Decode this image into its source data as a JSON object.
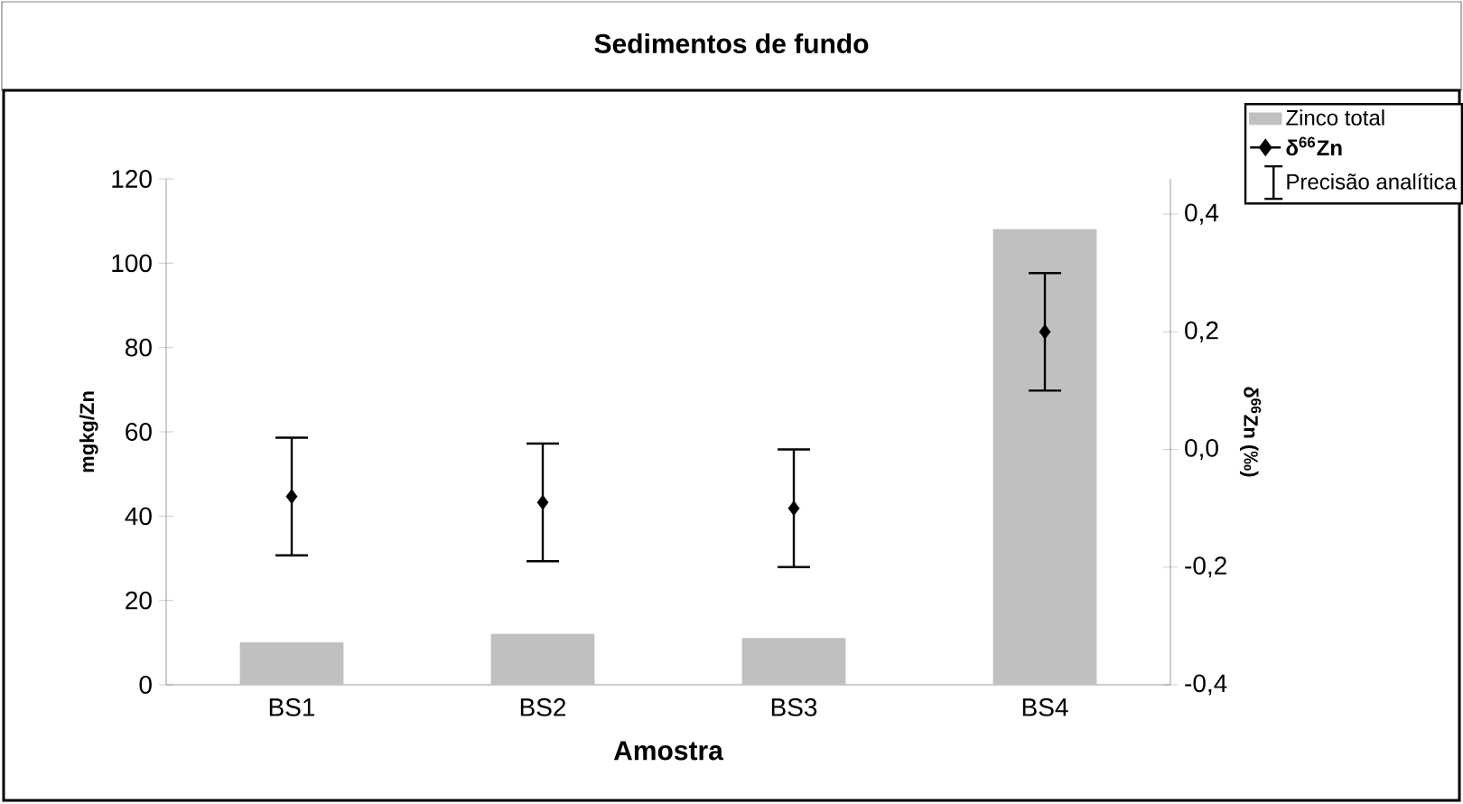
{
  "chart_data": {
    "type": "bar",
    "title": "Sedimentos de fundo",
    "xlabel": "Amostra",
    "ylabel": "mgkg/Zn",
    "y2label": "δ$^{66}$Zn (‰)",
    "categories": [
      "BS1",
      "BS2",
      "BS3",
      "BS4"
    ],
    "series": [
      {
        "name": "Zinco total",
        "color": "#c0c0c0",
        "values": [
          10,
          12,
          11,
          108
        ]
      },
      {
        "name": "δ$^{66}$Zn",
        "type": "scatter",
        "axis": "y2",
        "color": "#000000",
        "values": [
          -0.08,
          -0.09,
          -0.1,
          0.2
        ],
        "errors": [
          0.1,
          0.1,
          0.1,
          0.1
        ]
      }
    ],
    "ylim": [
      0,
      120
    ],
    "yticks": [
      0,
      20,
      40,
      60,
      80,
      100,
      120
    ],
    "y2lim": [
      -0.4,
      0.46
    ],
    "y2ticks": [
      {
        "value": -0.4,
        "label": "-0,4"
      },
      {
        "value": -0.2,
        "label": "-0,2"
      },
      {
        "value": 0,
        "label": "0,0"
      },
      {
        "value": 0.2,
        "label": "0,2"
      },
      {
        "value": 0.4,
        "label": "0,4"
      }
    ],
    "marker": "diamond",
    "legend": "top right",
    "annotations": [
      "Precisão analítica"
    ]
  }
}
